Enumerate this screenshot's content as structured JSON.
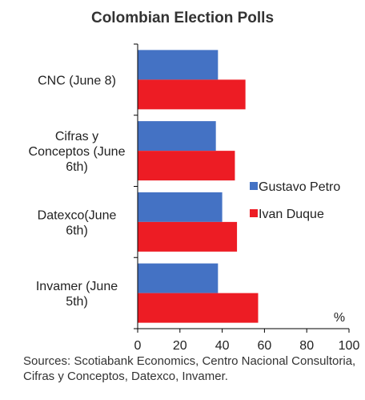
{
  "chart_data": {
    "type": "bar",
    "orientation": "horizontal",
    "title": "Colombian Election Polls",
    "categories": [
      "CNC (June 8)",
      "Cifras y Conceptos (June 6th)",
      "Datexco(June 6th)",
      "Invamer (June 5th)"
    ],
    "category_lines": [
      [
        "CNC (June 8)"
      ],
      [
        "Cifras y",
        "Conceptos (June",
        "6th)"
      ],
      [
        "Datexco(June",
        "6th)"
      ],
      [
        "Invamer (June",
        "5th)"
      ]
    ],
    "series": [
      {
        "name": "Gustavo Petro",
        "color": "#4472C4",
        "values": [
          38,
          37,
          40,
          38
        ]
      },
      {
        "name": "Ivan Duque",
        "color": "#ED1C24",
        "values": [
          51,
          46,
          47,
          57
        ]
      }
    ],
    "xlim": [
      0,
      100
    ],
    "xticks": [
      "0",
      "20",
      "40",
      "60",
      "80",
      "100"
    ],
    "unit_label": "%",
    "grid": false,
    "legend_position": "right"
  },
  "sources": "Sources: Scotiabank Economics, Centro Nacional Consultoria, Cifras y Conceptos, Datexco, Invamer."
}
